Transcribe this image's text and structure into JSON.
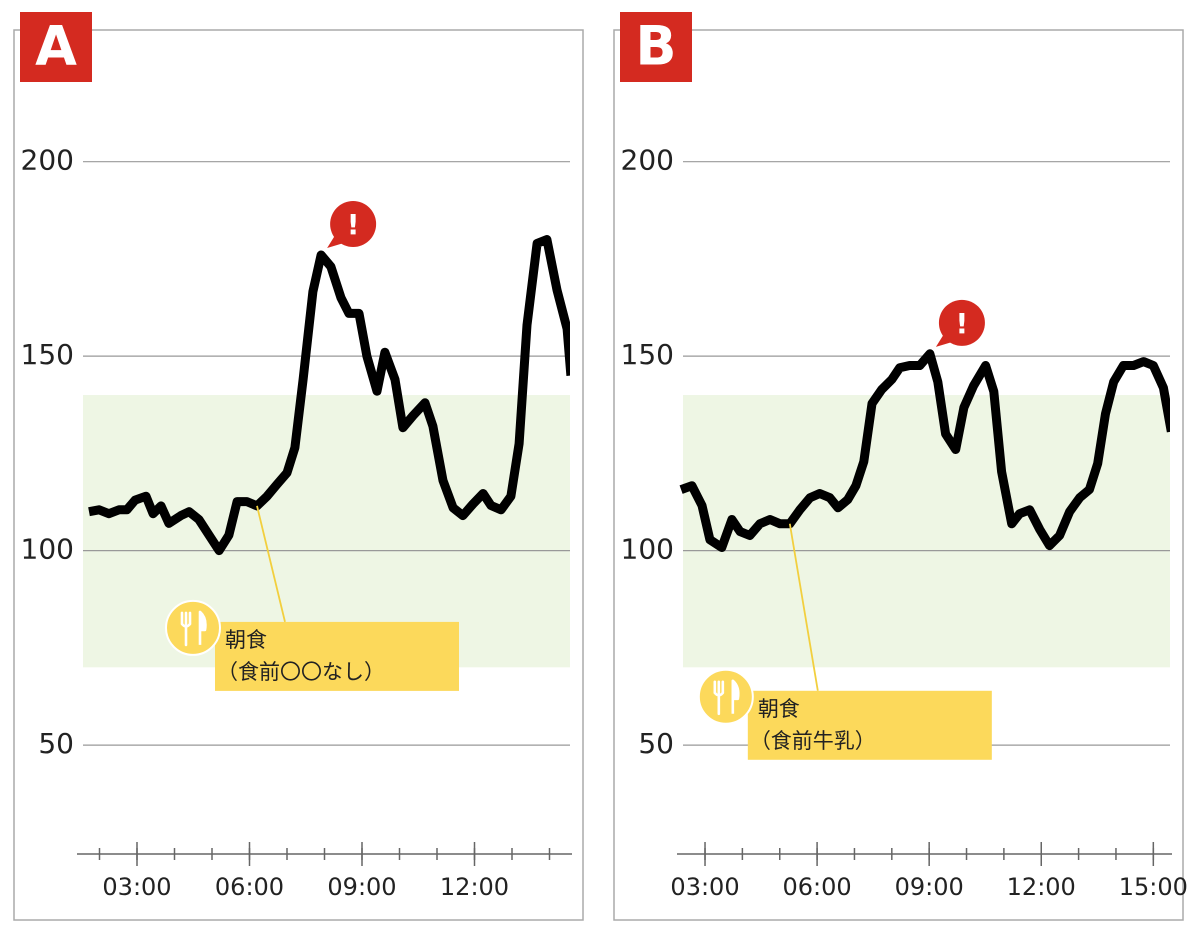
{
  "chart_data": [
    {
      "type": "line",
      "label": "A",
      "color": "#000000",
      "x": [
        1.72,
        1.99,
        2.25,
        2.52,
        2.73,
        2.95,
        3.24,
        3.43,
        3.64,
        3.85,
        4.17,
        4.39,
        4.65,
        4.92,
        5.19,
        5.45,
        5.67,
        5.93,
        6.2,
        6.47,
        6.73,
        7.0,
        7.21,
        7.43,
        7.69,
        7.91,
        8.17,
        8.44,
        8.65,
        8.92,
        9.13,
        9.4,
        9.61,
        9.88,
        10.09,
        10.36,
        10.68,
        10.89,
        11.16,
        11.43,
        11.69,
        11.96,
        12.23,
        12.44,
        12.71,
        12.97,
        13.19,
        13.4,
        13.67,
        13.93,
        14.2,
        14.47,
        14.57
      ],
      "values": [
        110,
        110.5,
        109.5,
        110.5,
        110.5,
        113,
        114,
        109.5,
        111.5,
        107,
        109,
        110,
        108,
        104,
        100,
        104,
        112.6,
        112.6,
        111.5,
        114,
        117,
        120,
        126.5,
        144,
        166.6,
        176,
        173,
        165,
        161,
        161,
        150,
        141,
        151,
        144,
        131.6,
        134.7,
        138,
        132,
        118,
        111,
        109,
        112,
        114.7,
        111.6,
        110.5,
        114,
        127.5,
        158,
        179,
        180,
        167,
        157,
        145
      ],
      "xlim": [
        1.4,
        14.6
      ],
      "ylim": [
        22,
        230
      ],
      "xticks": [
        {
          "value": 3,
          "label": "03:00"
        },
        {
          "value": 6,
          "label": "06:00"
        },
        {
          "value": 9,
          "label": "09:00"
        },
        {
          "value": 12,
          "label": "12:00"
        }
      ],
      "minor_xticks": [
        2,
        3,
        4,
        5,
        6,
        7,
        8,
        9,
        10,
        11,
        12,
        13,
        14
      ],
      "yticks": [
        50,
        100,
        150,
        200
      ],
      "grid": true,
      "target_range": [
        70,
        140
      ],
      "target_color": "#eef6e4",
      "alert": {
        "label": "!",
        "x": 7.91
      },
      "annotation": {
        "lines": [
          "朝食",
          "（食前〇〇なし）"
        ],
        "x": 6.2
      }
    },
    {
      "type": "line",
      "label": "B",
      "color": "#000000",
      "x": [
        2.36,
        2.65,
        2.92,
        3.13,
        3.45,
        3.72,
        3.94,
        4.2,
        4.47,
        4.74,
        5.01,
        5.27,
        5.54,
        5.81,
        6.07,
        6.34,
        6.56,
        6.82,
        7.04,
        7.25,
        7.47,
        7.73,
        8.0,
        8.21,
        8.48,
        8.75,
        9.02,
        9.23,
        9.44,
        9.71,
        9.93,
        10.19,
        10.51,
        10.73,
        10.94,
        11.21,
        11.42,
        11.69,
        11.96,
        12.22,
        12.49,
        12.76,
        13.03,
        13.29,
        13.51,
        13.72,
        13.94,
        14.2,
        14.47,
        14.74,
        15.0,
        15.27,
        15.48
      ],
      "values": [
        115.7,
        116.7,
        111.6,
        102.8,
        100.8,
        108,
        104.9,
        103.9,
        106.9,
        108,
        106.9,
        106.9,
        110.5,
        113.6,
        114.7,
        113.6,
        111,
        113.1,
        116.7,
        122.9,
        137.8,
        141.4,
        144,
        147,
        147.6,
        147.6,
        150.6,
        143.4,
        130,
        126,
        136.8,
        142.4,
        147.6,
        140.9,
        120.3,
        106.9,
        109.5,
        110.5,
        105.4,
        101.3,
        103.9,
        110,
        113.6,
        115.7,
        122.4,
        135.2,
        143.4,
        147.6,
        147.6,
        148.6,
        147.6,
        141.9,
        130.6
      ],
      "xlim": [
        2.25,
        15.5
      ],
      "ylim": [
        22,
        230
      ],
      "xticks": [
        {
          "value": 3,
          "label": "03:00"
        },
        {
          "value": 6,
          "label": "06:00"
        },
        {
          "value": 9,
          "label": "09:00"
        },
        {
          "value": 12,
          "label": "12:00"
        },
        {
          "value": 15,
          "label": "15:00"
        }
      ],
      "minor_xticks": [
        3,
        4,
        5,
        6,
        7,
        8,
        9,
        10,
        11,
        12,
        13,
        14,
        15
      ],
      "yticks": [
        50,
        100,
        150,
        200
      ],
      "grid": true,
      "target_range": [
        70,
        140
      ],
      "target_color": "#eef6e4",
      "alert": {
        "label": "!",
        "x": 9.02
      },
      "annotation": {
        "lines": [
          "朝食",
          "（食前牛乳）"
        ],
        "x": 5.27
      }
    }
  ]
}
